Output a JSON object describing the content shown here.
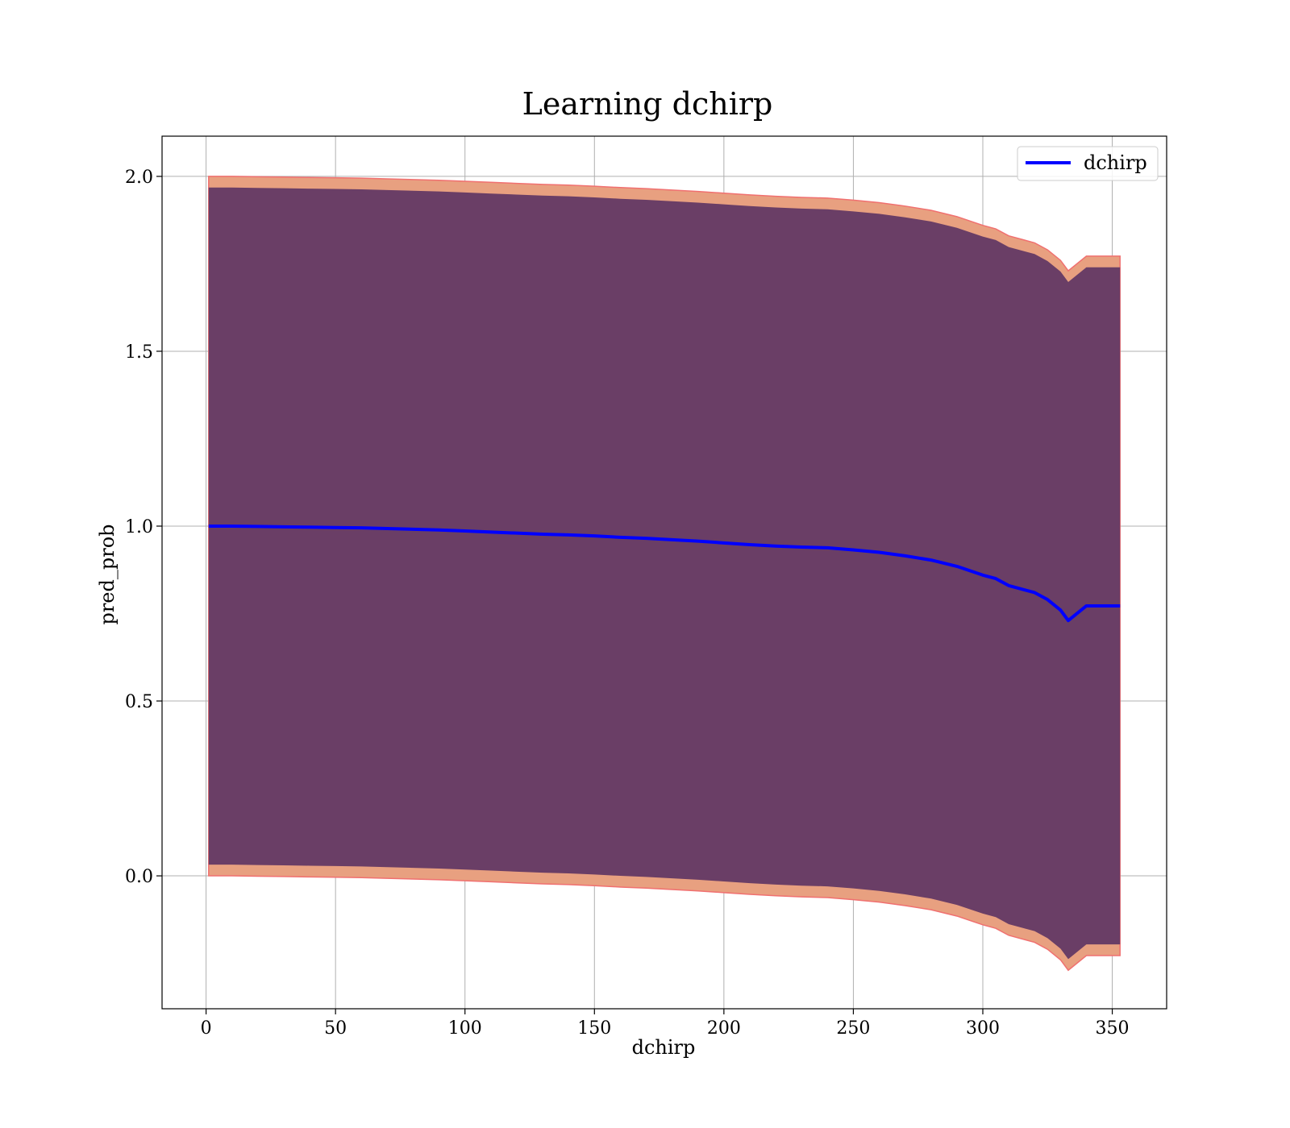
{
  "chart_data": {
    "type": "line",
    "title": "Learning dchirp",
    "xlabel": "dchirp",
    "ylabel": "pred_prob",
    "xlim": [
      -17,
      371
    ],
    "ylim": [
      -0.38,
      2.115
    ],
    "xticks": [
      0,
      50,
      100,
      150,
      200,
      250,
      300,
      350
    ],
    "yticks": [
      0.0,
      0.5,
      1.0,
      1.5,
      2.0
    ],
    "xtick_labels": [
      "0",
      "50",
      "100",
      "150",
      "200",
      "250",
      "300",
      "350"
    ],
    "ytick_labels": [
      "0.0",
      "0.5",
      "1.0",
      "1.5",
      "2.0"
    ],
    "grid": true,
    "legend_position": "top-right",
    "series": [
      {
        "name": "dchirp",
        "color": "#0000ff",
        "x": [
          1,
          10,
          20,
          30,
          40,
          50,
          60,
          70,
          80,
          90,
          100,
          110,
          120,
          130,
          140,
          150,
          160,
          170,
          180,
          190,
          200,
          210,
          220,
          230,
          240,
          250,
          260,
          270,
          280,
          290,
          300,
          305,
          310,
          320,
          325,
          330,
          333,
          340,
          345,
          353
        ],
        "y": [
          1.0,
          1.0,
          0.999,
          0.998,
          0.997,
          0.996,
          0.995,
          0.993,
          0.991,
          0.989,
          0.986,
          0.983,
          0.98,
          0.977,
          0.975,
          0.972,
          0.968,
          0.965,
          0.961,
          0.957,
          0.952,
          0.947,
          0.943,
          0.94,
          0.938,
          0.932,
          0.925,
          0.915,
          0.903,
          0.885,
          0.86,
          0.85,
          0.83,
          0.81,
          0.79,
          0.76,
          0.73,
          0.772,
          0.772,
          0.772
        ]
      }
    ],
    "bands": [
      {
        "color": "#e8a080",
        "edge_color": "#f07070",
        "x": [
          1,
          10,
          20,
          30,
          40,
          50,
          60,
          70,
          80,
          90,
          100,
          110,
          120,
          130,
          140,
          150,
          160,
          170,
          180,
          190,
          200,
          210,
          220,
          230,
          240,
          250,
          260,
          270,
          280,
          290,
          300,
          305,
          310,
          320,
          325,
          330,
          333,
          340,
          345,
          353
        ],
        "upper": [
          2.0,
          2.0,
          1.999,
          1.998,
          1.997,
          1.996,
          1.995,
          1.993,
          1.991,
          1.989,
          1.986,
          1.983,
          1.98,
          1.977,
          1.975,
          1.972,
          1.968,
          1.965,
          1.961,
          1.957,
          1.952,
          1.947,
          1.943,
          1.94,
          1.938,
          1.932,
          1.925,
          1.915,
          1.903,
          1.885,
          1.86,
          1.85,
          1.83,
          1.81,
          1.79,
          1.76,
          1.73,
          1.772,
          1.772,
          1.772
        ],
        "lower": [
          0.0,
          0.0,
          -0.001,
          -0.002,
          -0.003,
          -0.004,
          -0.005,
          -0.007,
          -0.009,
          -0.011,
          -0.014,
          -0.017,
          -0.02,
          -0.023,
          -0.025,
          -0.028,
          -0.032,
          -0.035,
          -0.039,
          -0.043,
          -0.048,
          -0.053,
          -0.057,
          -0.06,
          -0.062,
          -0.068,
          -0.075,
          -0.085,
          -0.097,
          -0.115,
          -0.14,
          -0.15,
          -0.17,
          -0.19,
          -0.21,
          -0.24,
          -0.27,
          -0.228,
          -0.228,
          -0.228
        ]
      },
      {
        "color": "#6a3e66",
        "x": [
          1,
          10,
          20,
          30,
          40,
          50,
          60,
          70,
          80,
          90,
          100,
          110,
          120,
          130,
          140,
          150,
          160,
          170,
          180,
          190,
          200,
          210,
          220,
          230,
          240,
          250,
          260,
          270,
          280,
          290,
          300,
          305,
          310,
          320,
          325,
          330,
          333,
          340,
          345,
          353
        ],
        "upper": [
          1.968,
          1.968,
          1.967,
          1.966,
          1.965,
          1.964,
          1.963,
          1.961,
          1.959,
          1.957,
          1.954,
          1.951,
          1.948,
          1.945,
          1.943,
          1.94,
          1.936,
          1.933,
          1.929,
          1.925,
          1.92,
          1.915,
          1.911,
          1.908,
          1.906,
          1.9,
          1.893,
          1.883,
          1.871,
          1.853,
          1.828,
          1.818,
          1.798,
          1.778,
          1.758,
          1.728,
          1.698,
          1.74,
          1.74,
          1.74
        ],
        "lower": [
          0.032,
          0.032,
          0.031,
          0.03,
          0.029,
          0.028,
          0.027,
          0.025,
          0.023,
          0.021,
          0.018,
          0.015,
          0.012,
          0.009,
          0.007,
          0.004,
          0.0,
          -0.003,
          -0.007,
          -0.011,
          -0.016,
          -0.021,
          -0.025,
          -0.028,
          -0.03,
          -0.036,
          -0.043,
          -0.053,
          -0.065,
          -0.083,
          -0.108,
          -0.118,
          -0.138,
          -0.158,
          -0.178,
          -0.208,
          -0.238,
          -0.196,
          -0.196,
          -0.196
        ]
      }
    ]
  }
}
